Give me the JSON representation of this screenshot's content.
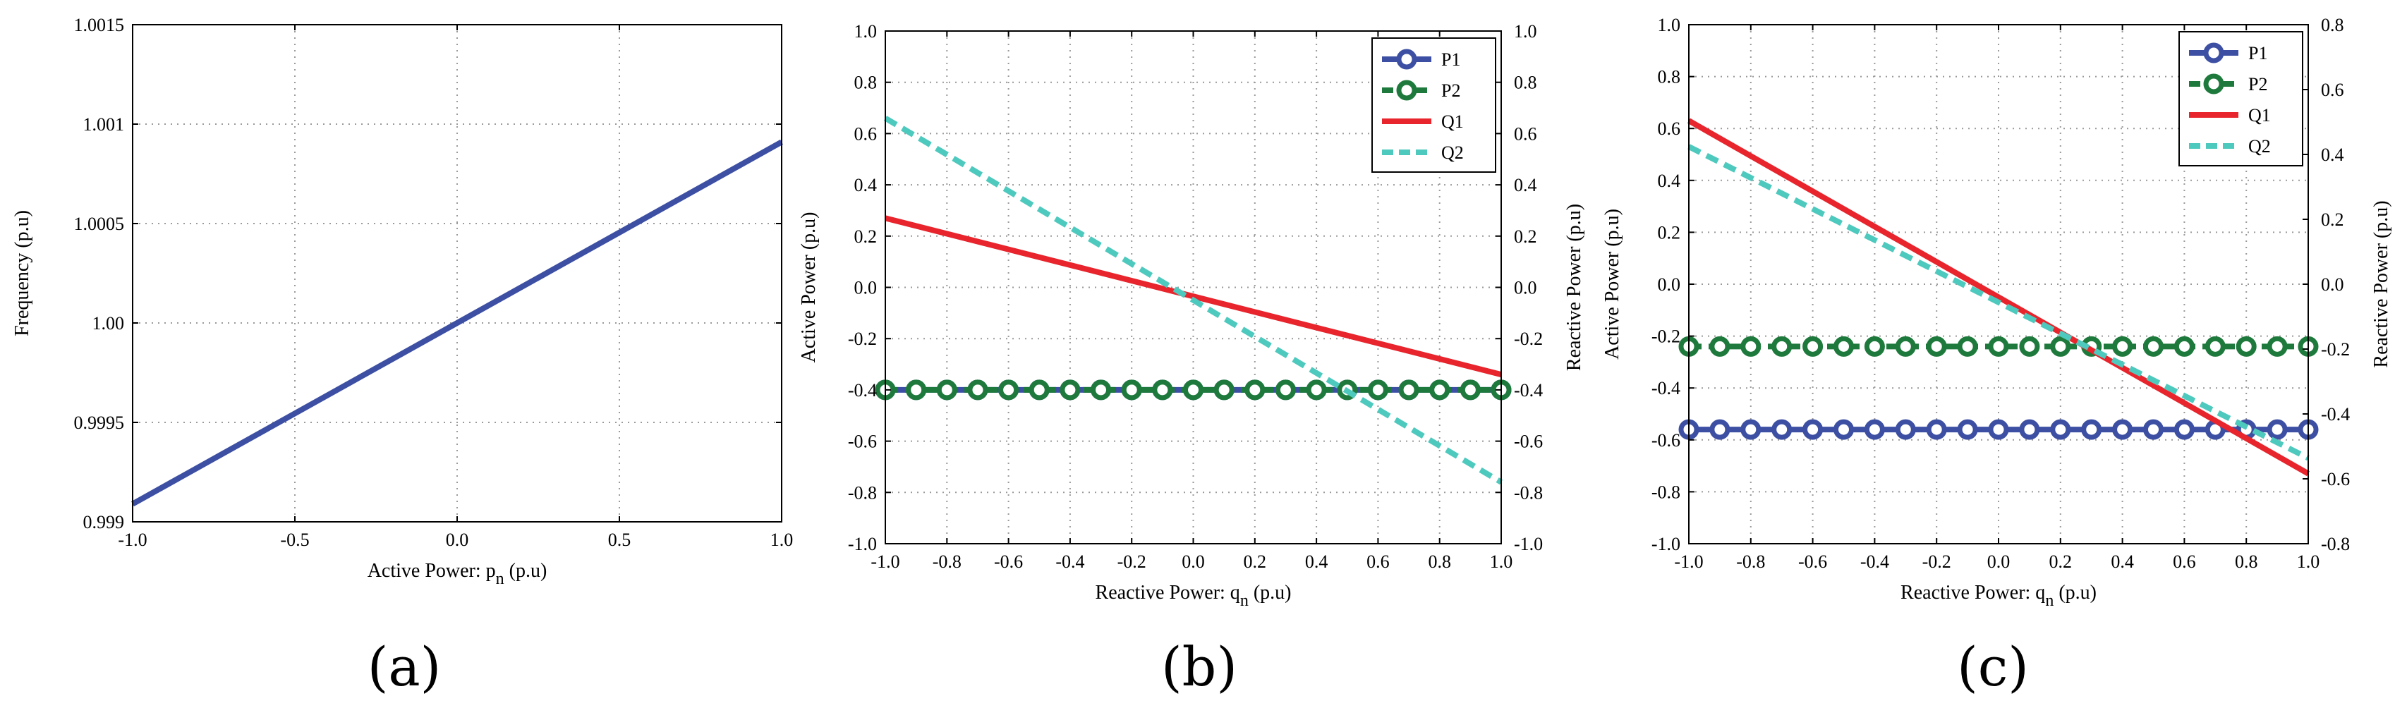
{
  "chart_data": [
    {
      "type": "line",
      "panel_label": "(a)",
      "title": "",
      "xlabel": "Active Power: p",
      "xlabel_sub": "n",
      "xlabel_suffix": " (p.u)",
      "ylabel": "Frequency (p.u)",
      "xlim": [
        -1.0,
        1.0
      ],
      "ylim": [
        0.999,
        1.0015
      ],
      "xticks": [
        -1.0,
        -0.5,
        0.0,
        0.5,
        1.0
      ],
      "xtick_labels": [
        "-1.0",
        "-0.5",
        "0.0",
        "0.5",
        "1.0"
      ],
      "yticks": [
        0.999,
        0.9995,
        1.0,
        1.0005,
        1.001,
        1.0015
      ],
      "ytick_labels": [
        "0.999",
        "0.9995",
        "1.00",
        "1.0005",
        "1.001",
        "1.0015"
      ],
      "grid": true,
      "series": [
        {
          "name": "frequency",
          "color": "#3c4fa3",
          "style": "solid",
          "x": [
            -1.0,
            1.0
          ],
          "y": [
            0.99909,
            1.00091
          ]
        }
      ]
    },
    {
      "type": "line",
      "panel_label": "(b)",
      "title": "",
      "xlabel": "Reactive Power: q",
      "xlabel_sub": "n",
      "xlabel_suffix": " (p.u)",
      "ylabel": "Active Power (p.u)",
      "ylabel_right": "Reactive Power (p.u)",
      "xlim": [
        -1.0,
        1.0
      ],
      "ylim": [
        -1.0,
        1.0
      ],
      "ylim_right": [
        -1.0,
        1.0
      ],
      "xticks": [
        -1.0,
        -0.8,
        -0.6,
        -0.4,
        -0.2,
        0.0,
        0.2,
        0.4,
        0.6,
        0.8,
        1.0
      ],
      "xtick_labels": [
        "-1.0",
        "-0.8",
        "-0.6",
        "-0.4",
        "-0.2",
        "0.0",
        "0.2",
        "0.4",
        "0.6",
        "0.8",
        "1.0"
      ],
      "yticks": [
        -1.0,
        -0.8,
        -0.6,
        -0.4,
        -0.2,
        0.0,
        0.2,
        0.4,
        0.6,
        0.8,
        1.0
      ],
      "ytick_labels": [
        "-1.0",
        "-0.8",
        "-0.6",
        "-0.4",
        "-0.2",
        "0.0",
        "0.2",
        "0.4",
        "0.6",
        "0.8",
        "1.0"
      ],
      "yticks_right": [
        -1.0,
        -0.8,
        -0.6,
        -0.4,
        -0.2,
        0.0,
        0.2,
        0.4,
        0.6,
        0.8,
        1.0
      ],
      "ytick_labels_right": [
        "-1.0",
        "-0.8",
        "-0.6",
        "-0.4",
        "-0.2",
        "0.0",
        "0.2",
        "0.4",
        "0.6",
        "0.8",
        "1.0"
      ],
      "grid": true,
      "legend": "top-right",
      "series": [
        {
          "name": "P1",
          "color": "#3c4fa3",
          "style": "solid-marker",
          "axis": "left",
          "x": [
            -1.0,
            1.0
          ],
          "y": [
            -0.4,
            -0.4
          ],
          "marker_step": 0.1
        },
        {
          "name": "P2",
          "color": "#1e7a3c",
          "style": "dash-marker",
          "axis": "left",
          "x": [
            -1.0,
            1.0
          ],
          "y": [
            -0.4,
            -0.4
          ],
          "marker_step": 0.1
        },
        {
          "name": "Q1",
          "color": "#e8242c",
          "style": "solid",
          "axis": "right",
          "x": [
            -1.0,
            1.0
          ],
          "y": [
            0.27,
            -0.34
          ]
        },
        {
          "name": "Q2",
          "color": "#4ec9be",
          "style": "dash",
          "axis": "right",
          "x": [
            -1.0,
            1.0
          ],
          "y": [
            0.66,
            -0.76
          ]
        }
      ]
    },
    {
      "type": "line",
      "panel_label": "(c)",
      "title": "",
      "xlabel": "Reactive Power: q",
      "xlabel_sub": "n",
      "xlabel_suffix": " (p.u)",
      "ylabel": "Active Power (p.u)",
      "ylabel_right": "Reactive Power (p.u)",
      "xlim": [
        -1.0,
        1.0
      ],
      "ylim": [
        -1.0,
        1.0
      ],
      "ylim_right": [
        -0.8,
        0.8
      ],
      "xticks": [
        -1.0,
        -0.8,
        -0.6,
        -0.4,
        -0.2,
        0.0,
        0.2,
        0.4,
        0.6,
        0.8,
        1.0
      ],
      "xtick_labels": [
        "-1.0",
        "-0.8",
        "-0.6",
        "-0.4",
        "-0.2",
        "0.0",
        "0.2",
        "0.4",
        "0.6",
        "0.8",
        "1.0"
      ],
      "yticks": [
        -1.0,
        -0.8,
        -0.6,
        -0.4,
        -0.2,
        0.0,
        0.2,
        0.4,
        0.6,
        0.8,
        1.0
      ],
      "ytick_labels": [
        "-1.0",
        "-0.8",
        "-0.6",
        "-0.4",
        "-0.2",
        "0.0",
        "0.2",
        "0.4",
        "0.6",
        "0.8",
        "1.0"
      ],
      "yticks_right": [
        -0.8,
        -0.6,
        -0.4,
        -0.2,
        0.0,
        0.2,
        0.4,
        0.6,
        0.8
      ],
      "ytick_labels_right": [
        "-0.8",
        "-0.6",
        "-0.4",
        "-0.2",
        "0.0",
        "0.2",
        "0.4",
        "0.6",
        "0.8"
      ],
      "grid": true,
      "legend": "top-right",
      "series": [
        {
          "name": "P1",
          "color": "#3c4fa3",
          "style": "solid-marker",
          "axis": "left",
          "x": [
            -1.0,
            1.0
          ],
          "y": [
            -0.56,
            -0.56
          ],
          "marker_step": 0.1
        },
        {
          "name": "P2",
          "color": "#1e7a3c",
          "style": "dash-marker",
          "axis": "left",
          "x": [
            -1.0,
            1.0
          ],
          "y": [
            -0.24,
            -0.24
          ],
          "marker_step": 0.1
        },
        {
          "name": "Q1",
          "color": "#e8242c",
          "style": "solid",
          "axis": "left",
          "x": [
            -1.0,
            1.0
          ],
          "y": [
            0.63,
            -0.73
          ]
        },
        {
          "name": "Q2",
          "color": "#4ec9be",
          "style": "dash",
          "axis": "left",
          "x": [
            -1.0,
            1.0
          ],
          "y": [
            0.53,
            -0.67
          ]
        }
      ]
    }
  ]
}
